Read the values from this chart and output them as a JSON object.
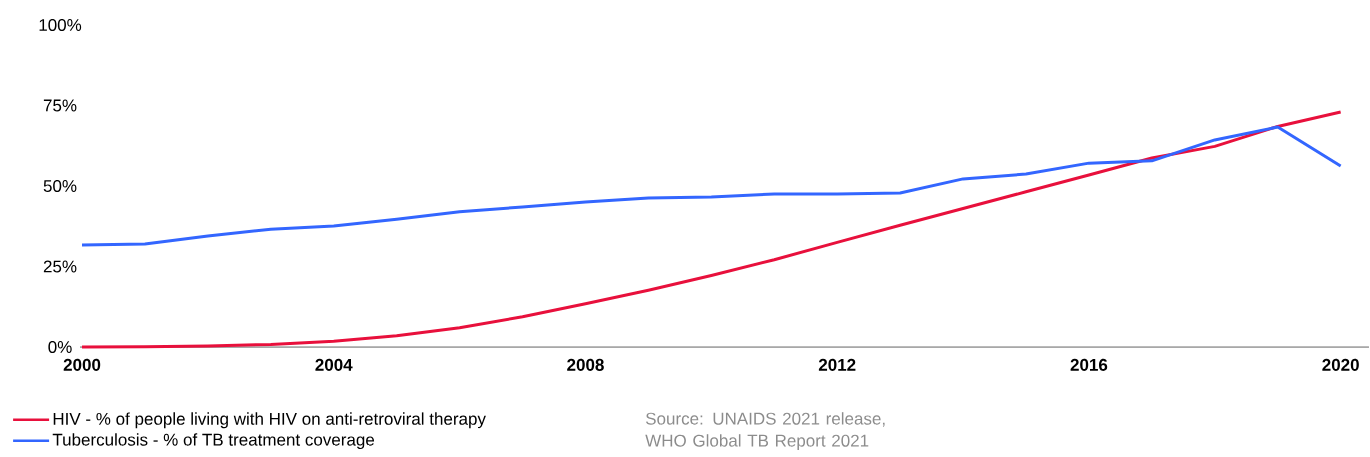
{
  "chart_data": {
    "type": "line",
    "x": [
      2000,
      2001,
      2002,
      2003,
      2004,
      2005,
      2006,
      2007,
      2008,
      2009,
      2010,
      2011,
      2012,
      2013,
      2014,
      2015,
      2016,
      2017,
      2018,
      2019,
      2020
    ],
    "series": [
      {
        "name": "HIV - % of people living with HIV on anti-retroviral therapy",
        "color": "#e8103c",
        "values": [
          0,
          0.1,
          0.3,
          0.8,
          1.8,
          3.5,
          6,
          9.4,
          13.4,
          17.6,
          22.2,
          27.1,
          32.5,
          37.8,
          43,
          48.2,
          53.4,
          58.7,
          62.3,
          68.5,
          73
        ]
      },
      {
        "name": "Tuberculosis - % of TB treatment coverage",
        "color": "#3366ff",
        "values": [
          31.7,
          32,
          34.5,
          36.6,
          37.6,
          39.7,
          42,
          43.5,
          45,
          46.3,
          46.6,
          47.5,
          47.5,
          47.8,
          52.2,
          53.7,
          57.1,
          57.8,
          64.3,
          68.3,
          56.2
        ]
      }
    ],
    "xlim": [
      2000,
      2020.45
    ],
    "xticks": [
      2000,
      2004,
      2008,
      2012,
      2016,
      2020
    ],
    "ylim": [
      0,
      100
    ],
    "yticks": [
      {
        "value": 0,
        "label": "0%"
      },
      {
        "value": 25,
        "label": "25%"
      },
      {
        "value": 50,
        "label": "50%"
      },
      {
        "value": 75,
        "label": "75%"
      },
      {
        "value": 100,
        "label": "100%"
      }
    ],
    "legend": "bottom left",
    "annotations": [
      "Source: UNAIDS 2021 release, WHO Global TB  Report 2021"
    ]
  }
}
